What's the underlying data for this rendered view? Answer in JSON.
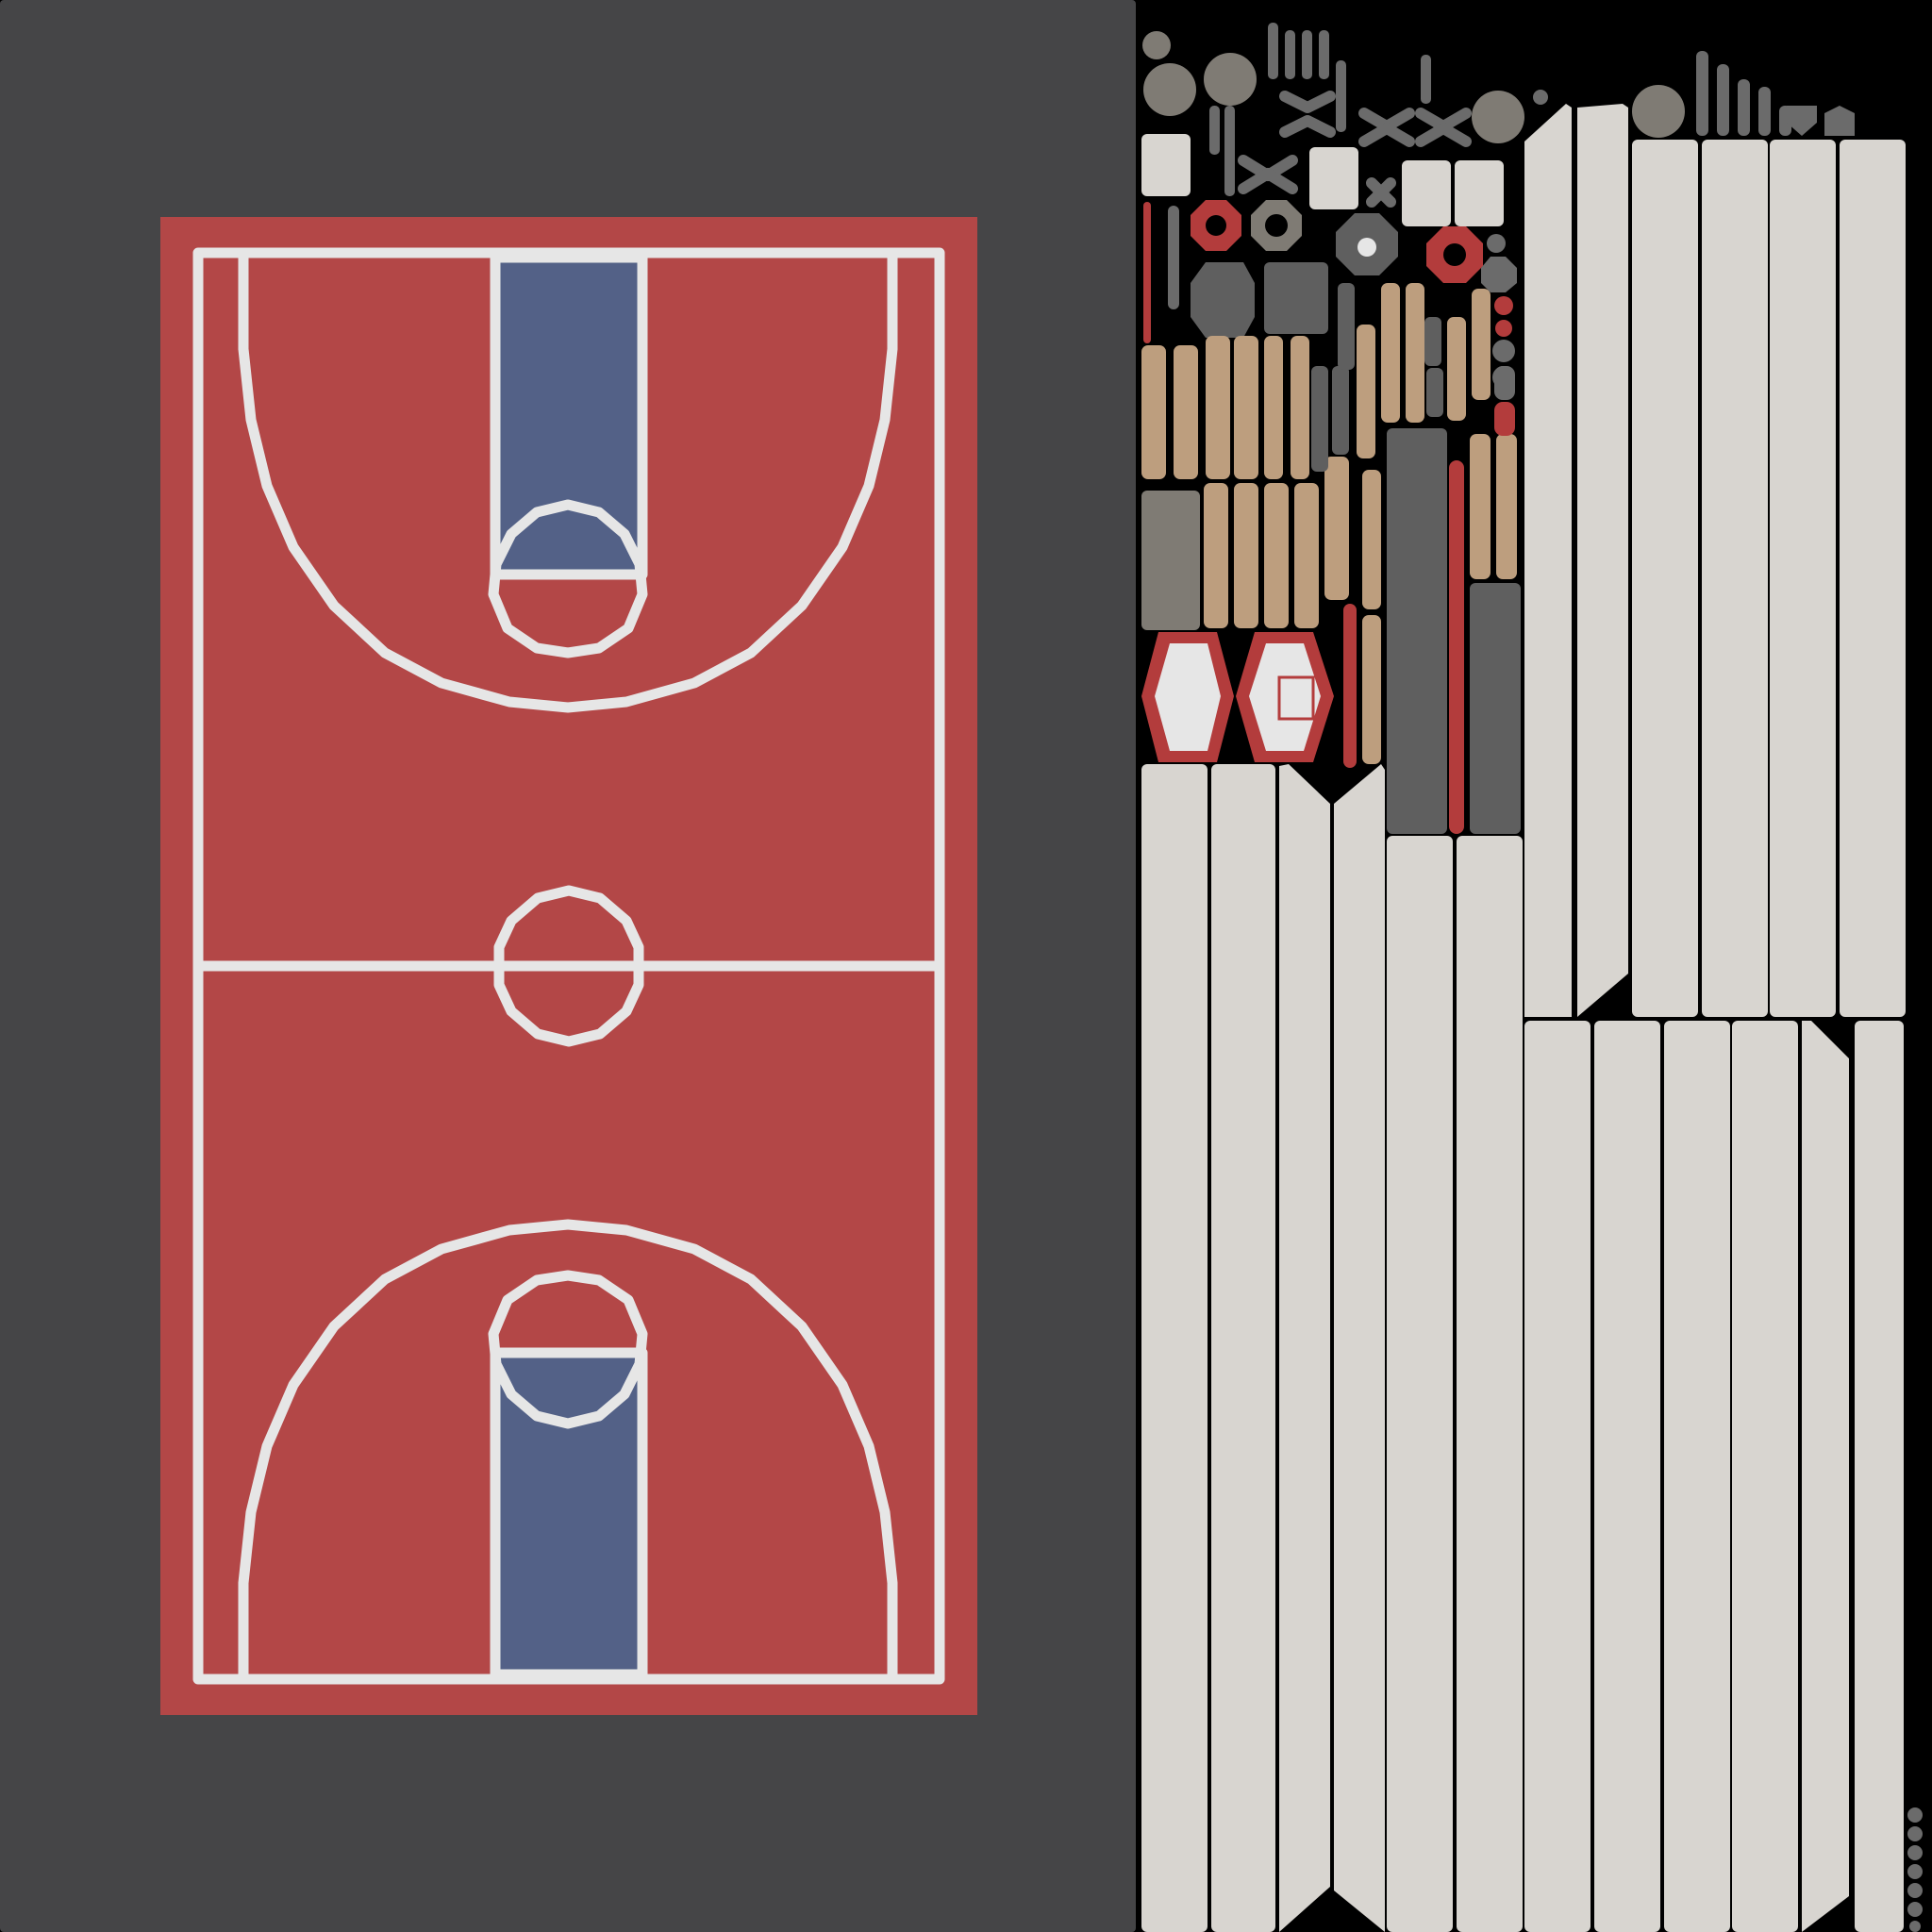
{
  "texture_atlas": {
    "colors": {
      "background": "#000000",
      "court_surround": "#454547",
      "court_floor": "#b34747",
      "court_lines": "#e6e6e6",
      "key_paint": "#536187",
      "strip_light": "#d8d5d0",
      "wood": "#bd9e7e",
      "gray_dark": "#5f5f5f",
      "gray_mid": "#6b6b6b",
      "gray_warm": "#7f7b74",
      "red_part": "#b33c3c",
      "white_part": "#e6e6e6"
    },
    "court": {
      "markings": [
        "boundary",
        "center-line",
        "center-circle",
        "three-point-arcs",
        "keys",
        "free-throw-circles"
      ]
    }
  }
}
